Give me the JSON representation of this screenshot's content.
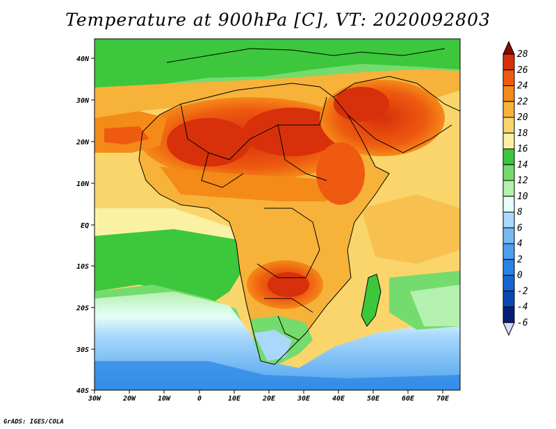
{
  "title": "Temperature at 900hPa [C], VT: 2020092803",
  "credit": "GrADS: IGES/COLA",
  "map": {
    "lon_ticks": [
      "30W",
      "20W",
      "10W",
      "0",
      "10E",
      "20E",
      "30E",
      "40E",
      "50E",
      "60E",
      "70E"
    ],
    "lat_ticks": [
      "40N",
      "30N",
      "20N",
      "10N",
      "EQ",
      "10S",
      "20S",
      "30S",
      "40S"
    ]
  },
  "colorbar": {
    "levels": [
      "28",
      "26",
      "24",
      "22",
      "20",
      "18",
      "16",
      "14",
      "12",
      "10",
      "8",
      "6",
      "4",
      "2",
      "0",
      "-2",
      "-4",
      "-6"
    ],
    "colors": [
      "#8b0a00",
      "#d8300a",
      "#ee5a10",
      "#f48a18",
      "#f7b23a",
      "#f9d56c",
      "#fbf1a4",
      "#3cc73c",
      "#74db6e",
      "#b4f0ae",
      "#e4fff6",
      "#a9d8fb",
      "#76baf4",
      "#4c9ff0",
      "#2a84e4",
      "#1665d2",
      "#0c48b4",
      "#081d7a",
      "#d9dcff"
    ]
  }
}
